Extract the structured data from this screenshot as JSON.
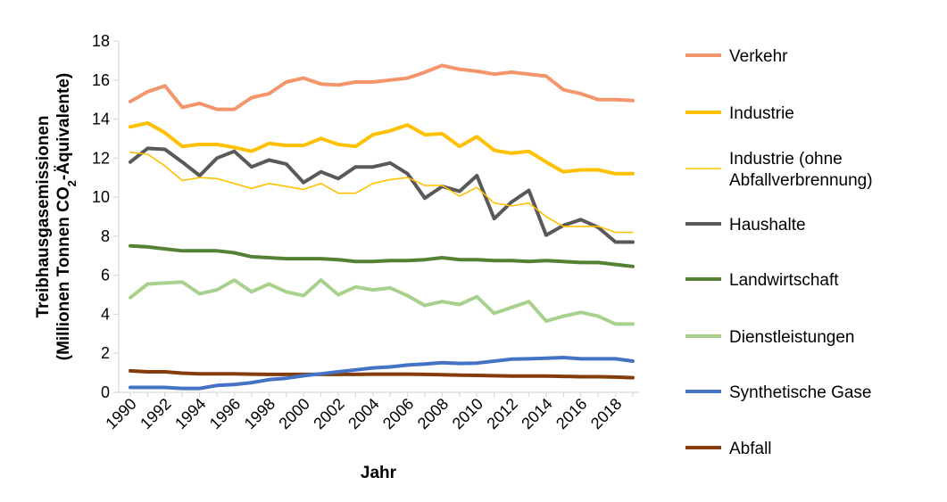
{
  "chart_data": {
    "type": "line",
    "title": "",
    "xlabel": "Jahr",
    "ylabel_line1": "Treibhausgasemissionen",
    "ylabel_line2": "(Millionen Tonnen CO",
    "ylabel_sub": "2",
    "ylabel_line2_end": "-Äquivalente)",
    "ylim": [
      0,
      18
    ],
    "yticks": [
      0,
      2,
      4,
      6,
      8,
      10,
      12,
      14,
      16,
      18
    ],
    "xlim": [
      1990,
      2019
    ],
    "xticks": [
      1990,
      1992,
      1994,
      1996,
      1998,
      2000,
      2002,
      2004,
      2006,
      2008,
      2010,
      2012,
      2014,
      2016,
      2018
    ],
    "grid": false,
    "legend_position": "right",
    "x": [
      1990,
      1991,
      1992,
      1993,
      1994,
      1995,
      1996,
      1997,
      1998,
      1999,
      2000,
      2001,
      2002,
      2003,
      2004,
      2005,
      2006,
      2007,
      2008,
      2009,
      2010,
      2011,
      2012,
      2013,
      2014,
      2015,
      2016,
      2017,
      2018,
      2019
    ],
    "series": [
      {
        "name": "Verkehr",
        "color": "#F4956B",
        "width": 4,
        "values": [
          14.9,
          15.4,
          15.7,
          14.6,
          14.8,
          14.5,
          14.5,
          15.1,
          15.3,
          15.9,
          16.1,
          15.8,
          15.75,
          15.9,
          15.9,
          16.0,
          16.1,
          16.4,
          16.75,
          16.55,
          16.45,
          16.3,
          16.4,
          16.3,
          16.2,
          15.5,
          15.3,
          15.0,
          15.0,
          14.95
        ]
      },
      {
        "name": "Industrie",
        "color": "#FFC000",
        "width": 4,
        "values": [
          13.6,
          13.8,
          13.3,
          12.6,
          12.7,
          12.7,
          12.55,
          12.35,
          12.75,
          12.65,
          12.65,
          13.0,
          12.7,
          12.6,
          13.2,
          13.4,
          13.7,
          13.2,
          13.25,
          12.6,
          13.1,
          12.4,
          12.25,
          12.35,
          11.8,
          11.3,
          11.4,
          11.4,
          11.2,
          11.2
        ]
      },
      {
        "name": "Industrie (ohne Abfallverbrennung)",
        "color": "#FFC000",
        "width": 1.6,
        "values": [
          12.3,
          12.2,
          11.6,
          10.85,
          11.0,
          10.95,
          10.7,
          10.45,
          10.7,
          10.55,
          10.4,
          10.7,
          10.2,
          10.2,
          10.7,
          10.9,
          11.0,
          10.6,
          10.6,
          10.05,
          10.5,
          9.7,
          9.55,
          9.7,
          9.0,
          8.5,
          8.5,
          8.5,
          8.2,
          8.2
        ]
      },
      {
        "name": "Haushalte",
        "color": "#595959",
        "width": 4,
        "values": [
          11.8,
          12.5,
          12.45,
          11.8,
          11.1,
          12.0,
          12.35,
          11.55,
          11.9,
          11.7,
          10.75,
          11.3,
          10.95,
          11.55,
          11.55,
          11.75,
          11.2,
          9.95,
          10.55,
          10.3,
          11.1,
          8.9,
          9.75,
          10.35,
          8.05,
          8.55,
          8.85,
          8.45,
          7.7,
          7.7
        ]
      },
      {
        "name": "Landwirtschaft",
        "color": "#548235",
        "width": 4,
        "values": [
          7.5,
          7.45,
          7.35,
          7.25,
          7.25,
          7.25,
          7.15,
          6.95,
          6.9,
          6.85,
          6.85,
          6.85,
          6.8,
          6.7,
          6.7,
          6.75,
          6.75,
          6.8,
          6.9,
          6.8,
          6.8,
          6.75,
          6.75,
          6.7,
          6.75,
          6.7,
          6.65,
          6.65,
          6.55,
          6.45
        ]
      },
      {
        "name": "Dienstleistungen",
        "color": "#A9D18E",
        "width": 4,
        "values": [
          4.85,
          5.55,
          5.6,
          5.65,
          5.05,
          5.25,
          5.75,
          5.15,
          5.55,
          5.15,
          4.95,
          5.75,
          5.0,
          5.4,
          5.25,
          5.35,
          4.95,
          4.45,
          4.65,
          4.5,
          4.9,
          4.05,
          4.35,
          4.65,
          3.65,
          3.9,
          4.1,
          3.9,
          3.5,
          3.5
        ]
      },
      {
        "name": "Synthetische Gase",
        "color": "#4472C4",
        "width": 4,
        "values": [
          0.25,
          0.25,
          0.25,
          0.2,
          0.2,
          0.35,
          0.4,
          0.5,
          0.65,
          0.72,
          0.85,
          0.95,
          1.05,
          1.15,
          1.25,
          1.3,
          1.4,
          1.45,
          1.52,
          1.48,
          1.5,
          1.6,
          1.7,
          1.72,
          1.75,
          1.78,
          1.72,
          1.72,
          1.72,
          1.6
        ]
      },
      {
        "name": "Abfall",
        "color": "#843C0C",
        "width": 4,
        "values": [
          1.1,
          1.05,
          1.05,
          0.98,
          0.95,
          0.95,
          0.95,
          0.93,
          0.92,
          0.92,
          0.92,
          0.92,
          0.92,
          0.92,
          0.93,
          0.93,
          0.93,
          0.92,
          0.9,
          0.88,
          0.87,
          0.85,
          0.83,
          0.83,
          0.83,
          0.82,
          0.8,
          0.8,
          0.78,
          0.75
        ]
      }
    ]
  }
}
